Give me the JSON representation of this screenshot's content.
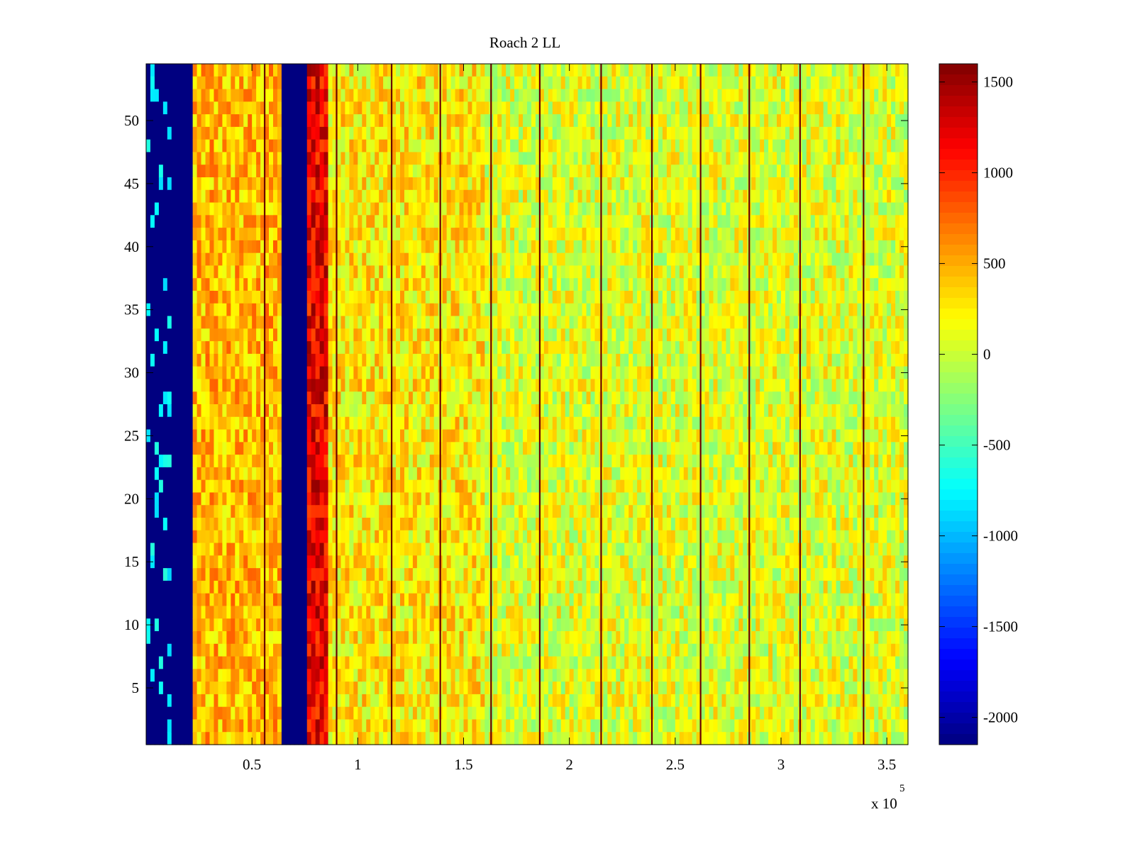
{
  "chart_data": {
    "type": "heatmap",
    "title": "Roach 2 LL",
    "xlabel": "",
    "ylabel": "",
    "x_exponent_label": "x 10",
    "x_exponent_power": "5",
    "xlim": [
      0,
      3.6
    ],
    "ylim": [
      0.5,
      54.5
    ],
    "x_ticks": [
      0.5,
      1,
      1.5,
      2,
      2.5,
      3,
      3.5
    ],
    "x_tick_labels": [
      "0.5",
      "1",
      "1.5",
      "2",
      "2.5",
      "3",
      "3.5"
    ],
    "y_ticks": [
      5,
      10,
      15,
      20,
      25,
      30,
      35,
      40,
      45,
      50
    ],
    "y_tick_labels": [
      "5",
      "10",
      "15",
      "20",
      "25",
      "30",
      "35",
      "40",
      "45",
      "50"
    ],
    "rows": 54,
    "colormap": "jet",
    "clim": [
      -2150,
      1600
    ],
    "colorbar": {
      "ticks": [
        1500,
        1000,
        500,
        0,
        -500,
        -1000,
        -1500,
        -2000
      ],
      "tick_labels": [
        "1500",
        "1000",
        "500",
        "0",
        "-500",
        "-1000",
        "-1500",
        "-2000"
      ]
    },
    "regions": [
      {
        "x_start": 0.0,
        "x_end": 0.23,
        "level": -2150,
        "note": "low band with sporadic cyan patches"
      },
      {
        "x_start": 0.23,
        "x_end": 0.65,
        "level": 450
      },
      {
        "x_start": 0.65,
        "x_end": 0.76,
        "level": -2150
      },
      {
        "x_start": 0.76,
        "x_end": 0.86,
        "level": 1200
      },
      {
        "x_start": 0.86,
        "x_end": 1.6,
        "level": 250
      },
      {
        "x_start": 1.6,
        "x_end": 3.6,
        "level": 80
      }
    ],
    "vertical_lines_x": [
      0.56,
      0.9,
      1.16,
      1.39,
      1.63,
      1.86,
      2.15,
      2.39,
      2.62,
      2.85,
      3.09,
      3.39
    ]
  }
}
